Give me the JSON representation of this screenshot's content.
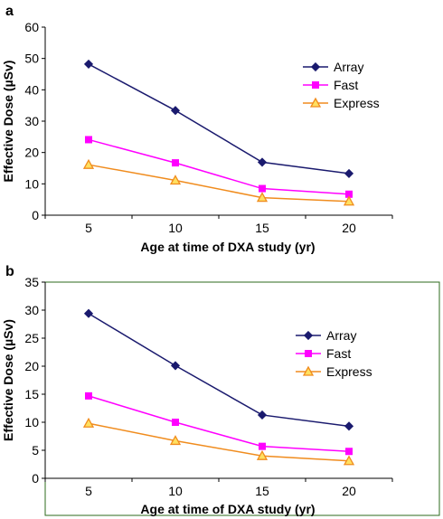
{
  "chart_data": [
    {
      "panel_label": "a",
      "type": "line",
      "x": [
        5,
        10,
        15,
        20
      ],
      "xlabel": "Age at time of DXA study (yr)",
      "ylabel": "Effective Dose (µSv)",
      "ylim": [
        0,
        60
      ],
      "yticks": [
        0,
        10,
        20,
        30,
        40,
        50,
        60
      ],
      "grid": false,
      "legend_position": "top-right",
      "series": [
        {
          "name": "Array",
          "values": [
            48.2,
            33.4,
            16.9,
            13.3
          ],
          "color": "#1a1a6e",
          "marker": "diamond"
        },
        {
          "name": "Fast",
          "values": [
            24.1,
            16.7,
            8.5,
            6.7
          ],
          "color": "#ff00ff",
          "marker": "square"
        },
        {
          "name": "Express",
          "values": [
            16.1,
            11.1,
            5.6,
            4.4
          ],
          "color": "#f08c1e",
          "marker": "triangle"
        }
      ]
    },
    {
      "panel_label": "b",
      "type": "line",
      "x": [
        5,
        10,
        15,
        20
      ],
      "xlabel": "Age at time of DXA study (yr)",
      "ylabel": "Effective Dose (µSv)",
      "ylim": [
        0,
        35
      ],
      "yticks": [
        0,
        5,
        10,
        15,
        20,
        25,
        30,
        35
      ],
      "grid": false,
      "legend_position": "top-right",
      "series": [
        {
          "name": "Array",
          "values": [
            29.4,
            20.1,
            11.3,
            9.3
          ],
          "color": "#1a1a6e",
          "marker": "diamond"
        },
        {
          "name": "Fast",
          "values": [
            14.7,
            10.0,
            5.7,
            4.8
          ],
          "color": "#ff00ff",
          "marker": "square"
        },
        {
          "name": "Express",
          "values": [
            9.8,
            6.7,
            4.0,
            3.1
          ],
          "color": "#f08c1e",
          "marker": "triangle"
        }
      ]
    }
  ]
}
